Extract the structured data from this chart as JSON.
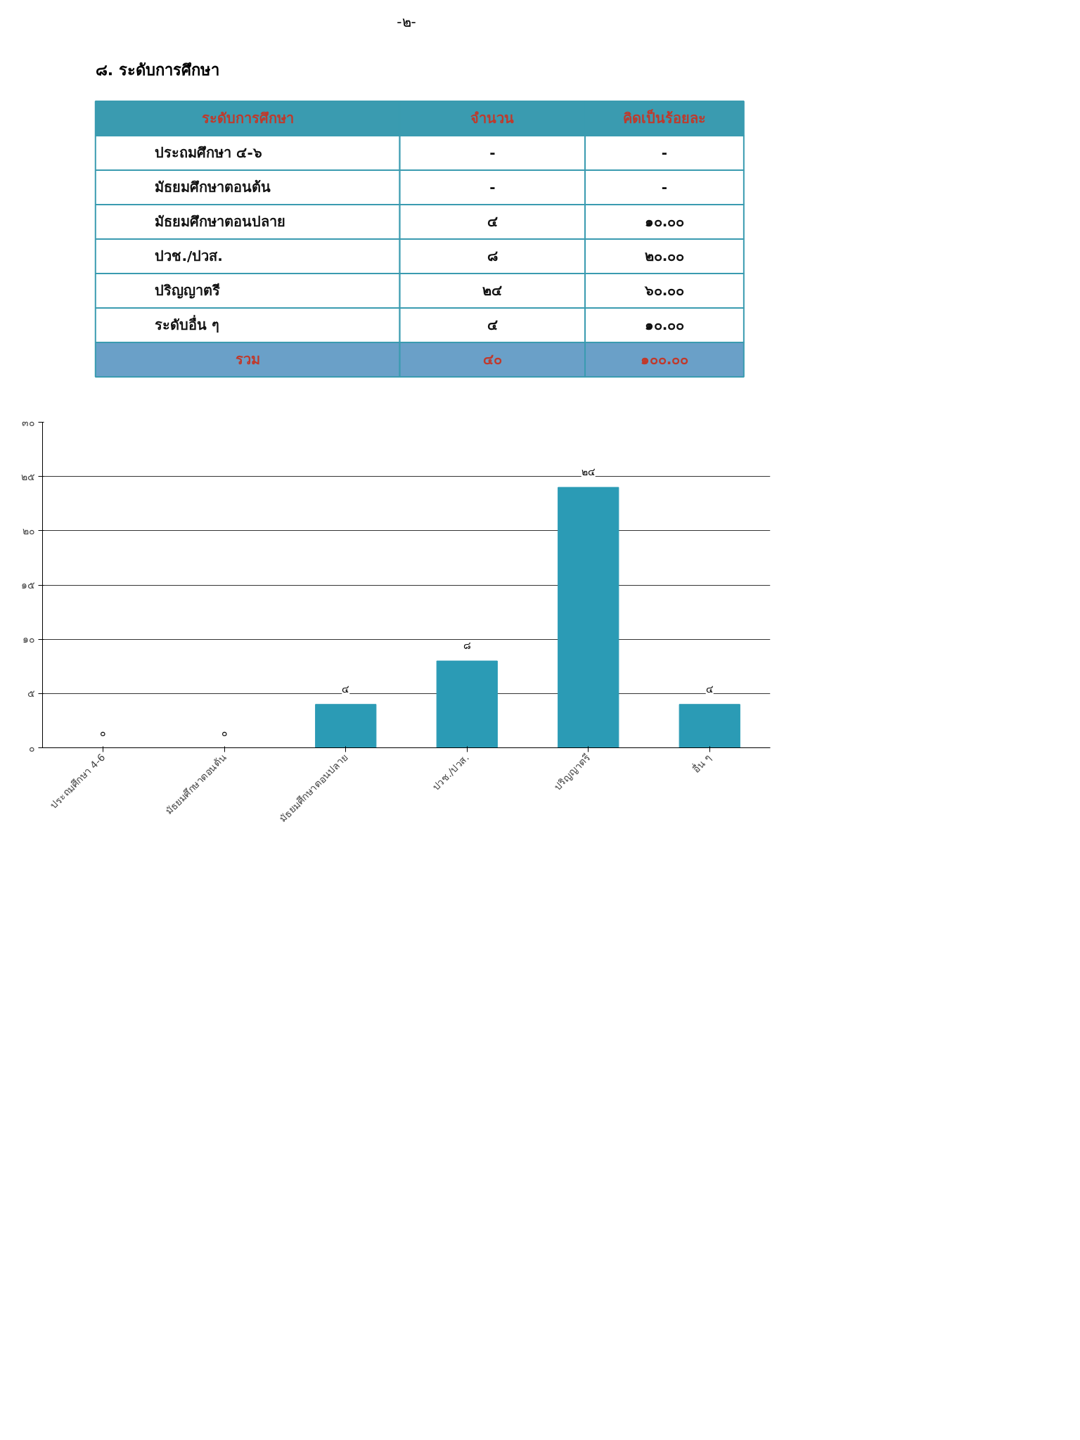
{
  "chart_data": [
    {
      "type": "other",
      "title": "-๒-"
    },
    {
      "type": "other",
      "title": "๘. ระดับการศึกษา",
      "annotations": [
        "ระดับการศึกษา",
        "จำนวน",
        "คิดเป็นร้อยละ",
        "ประถมศึกษา ๔-๖",
        "-",
        "-",
        "มัธยมศึกษาตอนต้น",
        "-",
        "-",
        "มัธยมศึกษาตอนปลาย",
        "๔",
        "๑๐.๐๐",
        "ปวช./ปวส.",
        "๘",
        "๒๐.๐๐",
        "ปริญญาตรี",
        "๒๔",
        "๖๐.๐๐",
        "ระดับอื่น ๆ",
        "๔",
        "๑๐.๐๐",
        "รวม",
        "๔๐",
        "๑๐๐.๐๐"
      ]
    },
    {
      "type": "bar",
      "categories": [
        "ประถมศึกษา 4-6",
        "มัธยมศึกษาตอนต้น",
        "มัธยมศึกษาตอนปลาย",
        "ปวช./ปวส.",
        "ปริญญาตรี",
        "อื่น ๆ"
      ],
      "values": [
        0,
        0,
        4,
        8,
        24,
        4
      ],
      "value_labels": [
        "๐",
        "๐",
        "๔",
        "๘",
        "๒๔",
        "๔"
      ],
      "color": "#2b9bb5",
      "ylim": [
        0,
        30
      ],
      "yticks": [
        {
          "value": 0,
          "label": "๐"
        },
        {
          "value": 5,
          "label": "๕"
        },
        {
          "value": 10,
          "label": "๑๐"
        },
        {
          "value": 15,
          "label": "๑๕"
        },
        {
          "value": 20,
          "label": "๒๐"
        },
        {
          "value": 25,
          "label": "๒๕"
        },
        {
          "value": 30,
          "label": "๓๐"
        }
      ],
      "grid": "y"
    }
  ]
}
